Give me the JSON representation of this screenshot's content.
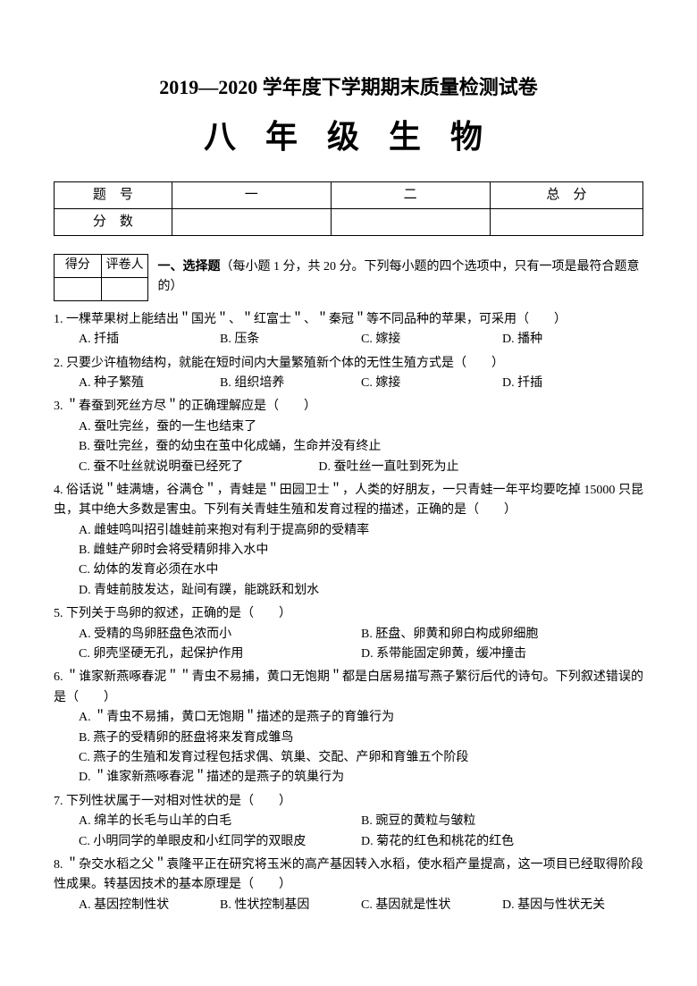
{
  "header": {
    "main_title": "2019—2020 学年度下学期期末质量检测试卷",
    "subject": "八 年 级 生 物"
  },
  "score_table": {
    "row1": [
      "题　号",
      "一",
      "二",
      "总　分"
    ],
    "row2": [
      "分　数",
      "",
      "",
      ""
    ]
  },
  "mini_table": {
    "cells": [
      "得分",
      "评卷人"
    ]
  },
  "section": {
    "label": "一、选择题",
    "desc": "（每小题 1 分，共 20 分。下列每小题的四个选项中，只有一项是最符合题意的）"
  },
  "questions": [
    {
      "num": "1.",
      "text": "一棵苹果树上能结出＂国光＂、＂红富士＂、＂秦冠＂等不同品种的苹果，可采用（　　）",
      "layout": "4col",
      "opts": [
        "A. 扦插",
        "B. 压条",
        "C. 嫁接",
        "D. 播种"
      ]
    },
    {
      "num": "2.",
      "text": "只要少许植物结构，就能在短时间内大量繁殖新个体的无性生殖方式是（　　）",
      "layout": "4col",
      "opts": [
        "A. 种子繁殖",
        "B. 组织培养",
        "C. 嫁接",
        "D. 扦插"
      ]
    },
    {
      "num": "3.",
      "text": "＂春蚕到死丝方尽＂的正确理解应是（　　）",
      "layout": "1col2",
      "opts": [
        "A. 蚕吐完丝，蚕的一生也结束了",
        "B. 蚕吐完丝，蚕的幼虫在茧中化成蛹，生命并没有终止",
        "C. 蚕不吐丝就说明蚕已经死了　　　　　　D. 蚕吐丝一直吐到死为止"
      ]
    },
    {
      "num": "4.",
      "text": "俗话说＂蛙满塘，谷满仓＂，青蛙是＂田园卫士＂，人类的好朋友，一只青蛙一年平均要吃掉 15000 只昆虫，其中绝大多数是害虫。下列有关青蛙生殖和发育过程的描述，正确的是（　　）",
      "layout": "1col",
      "opts": [
        "A. 雌蛙鸣叫招引雄蛙前来抱对有利于提高卵的受精率",
        "B. 雌蛙产卵时会将受精卵排入水中",
        "C. 幼体的发育必须在水中",
        "D. 青蛙前肢发达，趾间有蹼，能跳跃和划水"
      ]
    },
    {
      "num": "5.",
      "text": "下列关于鸟卵的叙述，正确的是（　　）",
      "layout": "2col",
      "opts": [
        "A. 受精的鸟卵胚盘色浓而小",
        "B. 胚盘、卵黄和卵白构成卵细胞",
        "C. 卵壳坚硬无孔，起保护作用",
        "D. 系带能固定卵黄，缓冲撞击"
      ]
    },
    {
      "num": "6.",
      "text": "＂谁家新燕啄春泥＂＂青虫不易捕，黄口无饱期＂都是白居易描写燕子繁衍后代的诗句。下列叙述错误的是（　　）",
      "layout": "1col",
      "opts": [
        "A. ＂青虫不易捕，黄口无饱期＂描述的是燕子的育雏行为",
        "B. 燕子的受精卵的胚盘将来发育成雏鸟",
        "C. 燕子的生殖和发育过程包括求偶、筑巢、交配、产卵和育雏五个阶段",
        "D. ＂谁家新燕啄春泥＂描述的是燕子的筑巢行为"
      ]
    },
    {
      "num": "7.",
      "text": "下列性状属于一对相对性状的是（　　）",
      "layout": "2col",
      "opts": [
        "A. 绵羊的长毛与山羊的白毛",
        "B. 豌豆的黄粒与皱粒",
        "C. 小明同学的单眼皮和小红同学的双眼皮",
        "D. 菊花的红色和桃花的红色"
      ]
    },
    {
      "num": "8.",
      "text": "＂杂交水稻之父＂袁隆平正在研究将玉米的高产基因转入水稻，使水稻产量提高，这一项目已经取得阶段性成果。转基因技术的基本原理是（　　）",
      "layout": "4col",
      "opts": [
        "A. 基因控制性状",
        "B. 性状控制基因",
        "C. 基因就是性状",
        "D. 基因与性状无关"
      ]
    }
  ]
}
